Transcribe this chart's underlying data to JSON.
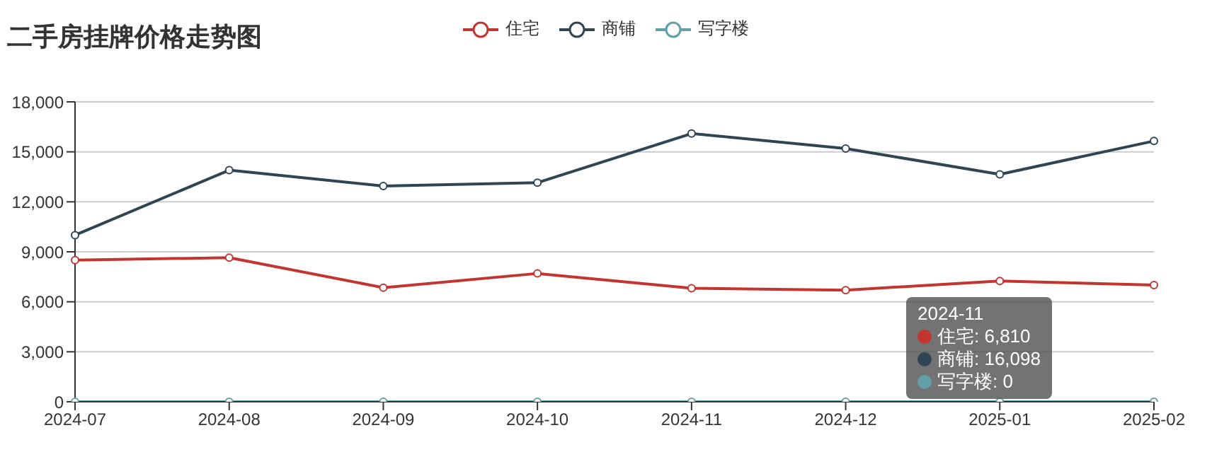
{
  "chart_data": {
    "type": "line",
    "title": "二手房挂牌价格走势图",
    "categories": [
      "2024-07",
      "2024-08",
      "2024-09",
      "2024-10",
      "2024-11",
      "2024-12",
      "2025-01",
      "2025-02"
    ],
    "series": [
      {
        "name": "住宅",
        "color": "#c23531",
        "values": [
          8500,
          8650,
          6850,
          7700,
          6810,
          6700,
          7250,
          7000
        ]
      },
      {
        "name": "商铺",
        "color": "#2f4554",
        "values": [
          10000,
          13900,
          12950,
          13150,
          16098,
          15200,
          13650,
          15650
        ]
      },
      {
        "name": "写字楼",
        "color": "#61a0a8",
        "values": [
          0,
          0,
          0,
          0,
          0,
          0,
          0,
          0
        ]
      }
    ],
    "ylim": [
      0,
      18000
    ],
    "yticks": [
      0,
      {
        "value": 3000,
        "label": "3,000"
      },
      {
        "value": 6000,
        "label": "6,000"
      },
      {
        "value": 9000,
        "label": "9,000"
      },
      {
        "value": 12000,
        "label": "12,000"
      },
      {
        "value": 15000,
        "label": "15,000"
      },
      {
        "value": 18000,
        "label": "18,000"
      }
    ],
    "grid": "y",
    "legend": "top",
    "marker": "circle",
    "line_style": "solid",
    "annotations": [
      "2024-11",
      "住宅: 6,810",
      "商铺: 16,098",
      "写字楼: 0"
    ]
  }
}
